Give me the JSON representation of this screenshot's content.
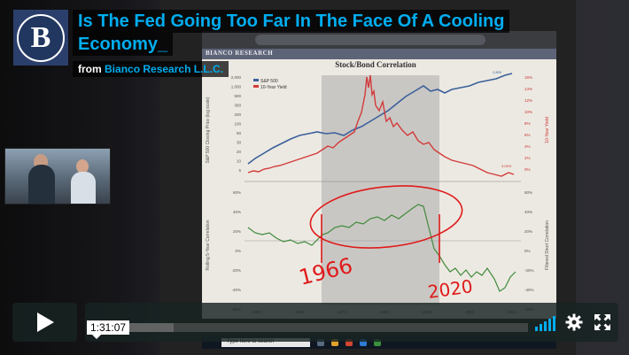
{
  "video": {
    "title_line1": "Is The Fed Going Too Far In The Face Of A Cooling",
    "title_line2": "Economy_",
    "byline_prefix": "from",
    "byline_source": "Bianco Research L.L.C.",
    "logo_letter": "B"
  },
  "slide": {
    "header": "BIANCO RESEARCH",
    "title": "Stock/Bond Correlation",
    "legend": [
      "S&P 500",
      "10-Year Yield"
    ],
    "left_axis_top_ticks": [
      "2,000",
      "1,000",
      "500",
      "300",
      "200",
      "100",
      "50",
      "30",
      "20",
      "10",
      "5"
    ],
    "right_axis_top_ticks": [
      "16%",
      "14%",
      "12%",
      "10%",
      "8%",
      "6%",
      "4%",
      "2%",
      "0%"
    ],
    "corr_ticks_left": [
      "60%",
      "40%",
      "20%",
      "0%",
      "-20%",
      "-40%",
      "-60%"
    ],
    "corr_ticks_right": [
      "60%",
      "40%",
      "20%",
      "0%",
      "-20%",
      "-40%",
      "-60%"
    ],
    "x_ticks": [
      "1954",
      "1964",
      "1974",
      "1984",
      "1994",
      "2004",
      "2014"
    ],
    "y_label_top": "S&P 500 Closing Price (log scale)",
    "y_label_top_right": "10-Year Yield",
    "y_label_bottom": "Rolling 5-Year Correlation",
    "y_label_bottom_right": "Filtered Short Correlation",
    "annotation_1966": "1966",
    "annotation_2020": "2020",
    "sp_end_label": "2,809",
    "yield_end_label": "3.05%"
  },
  "taskbar": {
    "search_placeholder": "Type here to search"
  },
  "player": {
    "time_tooltip": "1:31:07",
    "progress_fraction": 0.0,
    "buffered_fraction": 0.18,
    "accent_color": "#00adef",
    "icons": [
      "play-icon",
      "volume-icon",
      "settings-gear-icon",
      "fullscreen-icon"
    ]
  }
}
